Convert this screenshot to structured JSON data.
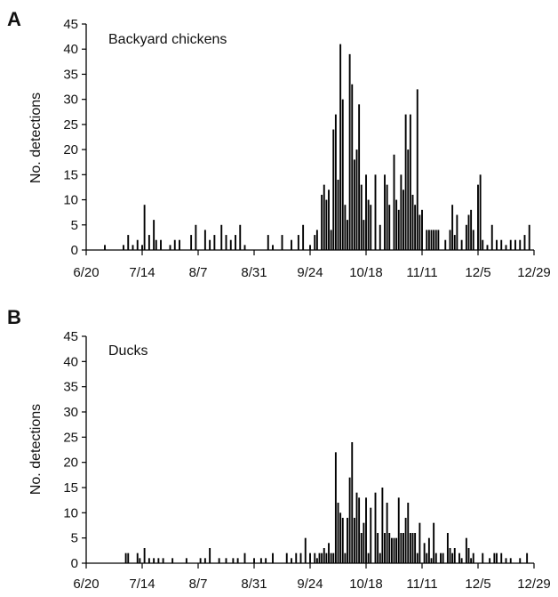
{
  "chart_data": [
    {
      "type": "bar",
      "panel_label": "A",
      "series_label": "Backyard chickens",
      "ylabel": "No. detections",
      "xlabel": "",
      "x_ticks": [
        "6/20",
        "7/14",
        "8/7",
        "8/31",
        "9/24",
        "10/18",
        "11/11",
        "12/5",
        "12/29"
      ],
      "x_range": [
        "6/20",
        "12/29"
      ],
      "y_ticks": [
        "0",
        "5",
        "10",
        "15",
        "20",
        "25",
        "30",
        "35",
        "40",
        "45"
      ],
      "ylim": [
        0,
        45
      ],
      "grid": false,
      "bar_color": "#000000",
      "series": [
        {
          "points": [
            {
              "date": "6/28",
              "value": 1
            },
            {
              "date": "7/6",
              "value": 1
            },
            {
              "date": "7/8",
              "value": 3
            },
            {
              "date": "7/10",
              "value": 1
            },
            {
              "date": "7/12",
              "value": 2
            },
            {
              "date": "7/14",
              "value": 1
            },
            {
              "date": "7/15",
              "value": 9
            },
            {
              "date": "7/17",
              "value": 3
            },
            {
              "date": "7/19",
              "value": 6
            },
            {
              "date": "7/20",
              "value": 2
            },
            {
              "date": "7/22",
              "value": 2
            },
            {
              "date": "7/26",
              "value": 1
            },
            {
              "date": "7/28",
              "value": 2
            },
            {
              "date": "7/30",
              "value": 2
            },
            {
              "date": "8/4",
              "value": 3
            },
            {
              "date": "8/6",
              "value": 5
            },
            {
              "date": "8/10",
              "value": 4
            },
            {
              "date": "8/12",
              "value": 2
            },
            {
              "date": "8/14",
              "value": 3
            },
            {
              "date": "8/17",
              "value": 5
            },
            {
              "date": "8/19",
              "value": 3
            },
            {
              "date": "8/21",
              "value": 2
            },
            {
              "date": "8/23",
              "value": 3
            },
            {
              "date": "8/25",
              "value": 5
            },
            {
              "date": "8/27",
              "value": 1
            },
            {
              "date": "9/6",
              "value": 3
            },
            {
              "date": "9/8",
              "value": 1
            },
            {
              "date": "9/12",
              "value": 3
            },
            {
              "date": "9/16",
              "value": 2
            },
            {
              "date": "9/19",
              "value": 3
            },
            {
              "date": "9/21",
              "value": 5
            },
            {
              "date": "9/24",
              "value": 1
            },
            {
              "date": "9/26",
              "value": 3
            },
            {
              "date": "9/27",
              "value": 4
            },
            {
              "date": "9/29",
              "value": 11
            },
            {
              "date": "9/30",
              "value": 13
            },
            {
              "date": "10/1",
              "value": 10
            },
            {
              "date": "10/2",
              "value": 12
            },
            {
              "date": "10/3",
              "value": 4
            },
            {
              "date": "10/4",
              "value": 24
            },
            {
              "date": "10/5",
              "value": 27
            },
            {
              "date": "10/6",
              "value": 14
            },
            {
              "date": "10/7",
              "value": 41
            },
            {
              "date": "10/8",
              "value": 30
            },
            {
              "date": "10/9",
              "value": 9
            },
            {
              "date": "10/10",
              "value": 6
            },
            {
              "date": "10/11",
              "value": 39
            },
            {
              "date": "10/12",
              "value": 33
            },
            {
              "date": "10/13",
              "value": 18
            },
            {
              "date": "10/14",
              "value": 20
            },
            {
              "date": "10/15",
              "value": 29
            },
            {
              "date": "10/16",
              "value": 13
            },
            {
              "date": "10/17",
              "value": 6
            },
            {
              "date": "10/18",
              "value": 15
            },
            {
              "date": "10/19",
              "value": 10
            },
            {
              "date": "10/20",
              "value": 9
            },
            {
              "date": "10/22",
              "value": 15
            },
            {
              "date": "10/24",
              "value": 5
            },
            {
              "date": "10/26",
              "value": 15
            },
            {
              "date": "10/27",
              "value": 13
            },
            {
              "date": "10/28",
              "value": 9
            },
            {
              "date": "10/30",
              "value": 19
            },
            {
              "date": "10/31",
              "value": 10
            },
            {
              "date": "11/1",
              "value": 8
            },
            {
              "date": "11/2",
              "value": 15
            },
            {
              "date": "11/3",
              "value": 12
            },
            {
              "date": "11/4",
              "value": 27
            },
            {
              "date": "11/5",
              "value": 20
            },
            {
              "date": "11/6",
              "value": 27
            },
            {
              "date": "11/7",
              "value": 11
            },
            {
              "date": "11/8",
              "value": 9
            },
            {
              "date": "11/9",
              "value": 32
            },
            {
              "date": "11/10",
              "value": 7
            },
            {
              "date": "11/11",
              "value": 8
            },
            {
              "date": "11/13",
              "value": 4
            },
            {
              "date": "11/14",
              "value": 4
            },
            {
              "date": "11/15",
              "value": 4
            },
            {
              "date": "11/16",
              "value": 4
            },
            {
              "date": "11/17",
              "value": 4
            },
            {
              "date": "11/18",
              "value": 4
            },
            {
              "date": "11/21",
              "value": 2
            },
            {
              "date": "11/23",
              "value": 4
            },
            {
              "date": "11/24",
              "value": 9
            },
            {
              "date": "11/25",
              "value": 3
            },
            {
              "date": "11/26",
              "value": 7
            },
            {
              "date": "11/28",
              "value": 2
            },
            {
              "date": "11/30",
              "value": 5
            },
            {
              "date": "12/1",
              "value": 7
            },
            {
              "date": "12/2",
              "value": 8
            },
            {
              "date": "12/3",
              "value": 4
            },
            {
              "date": "12/5",
              "value": 13
            },
            {
              "date": "12/6",
              "value": 15
            },
            {
              "date": "12/7",
              "value": 2
            },
            {
              "date": "12/9",
              "value": 1
            },
            {
              "date": "12/11",
              "value": 5
            },
            {
              "date": "12/13",
              "value": 2
            },
            {
              "date": "12/15",
              "value": 2
            },
            {
              "date": "12/17",
              "value": 1
            },
            {
              "date": "12/19",
              "value": 2
            },
            {
              "date": "12/21",
              "value": 2
            },
            {
              "date": "12/23",
              "value": 2
            },
            {
              "date": "12/25",
              "value": 3
            },
            {
              "date": "12/27",
              "value": 5
            }
          ]
        }
      ]
    },
    {
      "type": "bar",
      "panel_label": "B",
      "series_label": "Ducks",
      "ylabel": "No. detections",
      "xlabel": "",
      "x_ticks": [
        "6/20",
        "7/14",
        "8/7",
        "8/31",
        "9/24",
        "10/18",
        "11/11",
        "12/5",
        "12/29"
      ],
      "x_range": [
        "6/20",
        "12/29"
      ],
      "y_ticks": [
        "0",
        "5",
        "10",
        "15",
        "20",
        "25",
        "30",
        "35",
        "40",
        "45"
      ],
      "ylim": [
        0,
        45
      ],
      "grid": false,
      "bar_color": "#000000",
      "series": [
        {
          "points": [
            {
              "date": "7/7",
              "value": 2
            },
            {
              "date": "7/8",
              "value": 2
            },
            {
              "date": "7/12",
              "value": 2
            },
            {
              "date": "7/13",
              "value": 1
            },
            {
              "date": "7/15",
              "value": 3
            },
            {
              "date": "7/17",
              "value": 1
            },
            {
              "date": "7/19",
              "value": 1
            },
            {
              "date": "7/21",
              "value": 1
            },
            {
              "date": "7/23",
              "value": 1
            },
            {
              "date": "7/27",
              "value": 1
            },
            {
              "date": "8/2",
              "value": 1
            },
            {
              "date": "8/8",
              "value": 1
            },
            {
              "date": "8/10",
              "value": 1
            },
            {
              "date": "8/12",
              "value": 3
            },
            {
              "date": "8/16",
              "value": 1
            },
            {
              "date": "8/19",
              "value": 1
            },
            {
              "date": "8/22",
              "value": 1
            },
            {
              "date": "8/24",
              "value": 1
            },
            {
              "date": "8/27",
              "value": 2
            },
            {
              "date": "8/31",
              "value": 1
            },
            {
              "date": "9/3",
              "value": 1
            },
            {
              "date": "9/5",
              "value": 1
            },
            {
              "date": "9/8",
              "value": 2
            },
            {
              "date": "9/14",
              "value": 2
            },
            {
              "date": "9/16",
              "value": 1
            },
            {
              "date": "9/18",
              "value": 2
            },
            {
              "date": "9/20",
              "value": 2
            },
            {
              "date": "9/22",
              "value": 5
            },
            {
              "date": "9/24",
              "value": 2
            },
            {
              "date": "9/26",
              "value": 2
            },
            {
              "date": "9/27",
              "value": 1
            },
            {
              "date": "9/28",
              "value": 2
            },
            {
              "date": "9/29",
              "value": 2
            },
            {
              "date": "9/30",
              "value": 3
            },
            {
              "date": "10/1",
              "value": 2
            },
            {
              "date": "10/2",
              "value": 4
            },
            {
              "date": "10/3",
              "value": 2
            },
            {
              "date": "10/4",
              "value": 2
            },
            {
              "date": "10/5",
              "value": 22
            },
            {
              "date": "10/6",
              "value": 12
            },
            {
              "date": "10/7",
              "value": 10
            },
            {
              "date": "10/8",
              "value": 9
            },
            {
              "date": "10/9",
              "value": 2
            },
            {
              "date": "10/10",
              "value": 9
            },
            {
              "date": "10/11",
              "value": 17
            },
            {
              "date": "10/12",
              "value": 24
            },
            {
              "date": "10/13",
              "value": 9
            },
            {
              "date": "10/14",
              "value": 14
            },
            {
              "date": "10/15",
              "value": 13
            },
            {
              "date": "10/16",
              "value": 6
            },
            {
              "date": "10/17",
              "value": 8
            },
            {
              "date": "10/18",
              "value": 13
            },
            {
              "date": "10/19",
              "value": 2
            },
            {
              "date": "10/20",
              "value": 11
            },
            {
              "date": "10/22",
              "value": 14
            },
            {
              "date": "10/23",
              "value": 6
            },
            {
              "date": "10/24",
              "value": 2
            },
            {
              "date": "10/25",
              "value": 15
            },
            {
              "date": "10/26",
              "value": 6
            },
            {
              "date": "10/27",
              "value": 12
            },
            {
              "date": "10/28",
              "value": 6
            },
            {
              "date": "10/29",
              "value": 5
            },
            {
              "date": "10/30",
              "value": 5
            },
            {
              "date": "10/31",
              "value": 5
            },
            {
              "date": "11/1",
              "value": 13
            },
            {
              "date": "11/2",
              "value": 6
            },
            {
              "date": "11/3",
              "value": 6
            },
            {
              "date": "11/4",
              "value": 9
            },
            {
              "date": "11/5",
              "value": 12
            },
            {
              "date": "11/6",
              "value": 6
            },
            {
              "date": "11/7",
              "value": 6
            },
            {
              "date": "11/8",
              "value": 6
            },
            {
              "date": "11/9",
              "value": 2
            },
            {
              "date": "11/10",
              "value": 8
            },
            {
              "date": "11/12",
              "value": 4
            },
            {
              "date": "11/13",
              "value": 2
            },
            {
              "date": "11/14",
              "value": 5
            },
            {
              "date": "11/15",
              "value": 1
            },
            {
              "date": "11/16",
              "value": 8
            },
            {
              "date": "11/17",
              "value": 2
            },
            {
              "date": "11/19",
              "value": 2
            },
            {
              "date": "11/20",
              "value": 2
            },
            {
              "date": "11/22",
              "value": 6
            },
            {
              "date": "11/23",
              "value": 3
            },
            {
              "date": "11/24",
              "value": 2
            },
            {
              "date": "11/25",
              "value": 3
            },
            {
              "date": "11/27",
              "value": 2
            },
            {
              "date": "11/28",
              "value": 1
            },
            {
              "date": "11/30",
              "value": 5
            },
            {
              "date": "12/1",
              "value": 3
            },
            {
              "date": "12/2",
              "value": 1
            },
            {
              "date": "12/3",
              "value": 2
            },
            {
              "date": "12/7",
              "value": 2
            },
            {
              "date": "12/10",
              "value": 1
            },
            {
              "date": "12/12",
              "value": 2
            },
            {
              "date": "12/13",
              "value": 2
            },
            {
              "date": "12/15",
              "value": 2
            },
            {
              "date": "12/17",
              "value": 1
            },
            {
              "date": "12/19",
              "value": 1
            },
            {
              "date": "12/23",
              "value": 1
            },
            {
              "date": "12/26",
              "value": 2
            }
          ]
        }
      ]
    }
  ]
}
